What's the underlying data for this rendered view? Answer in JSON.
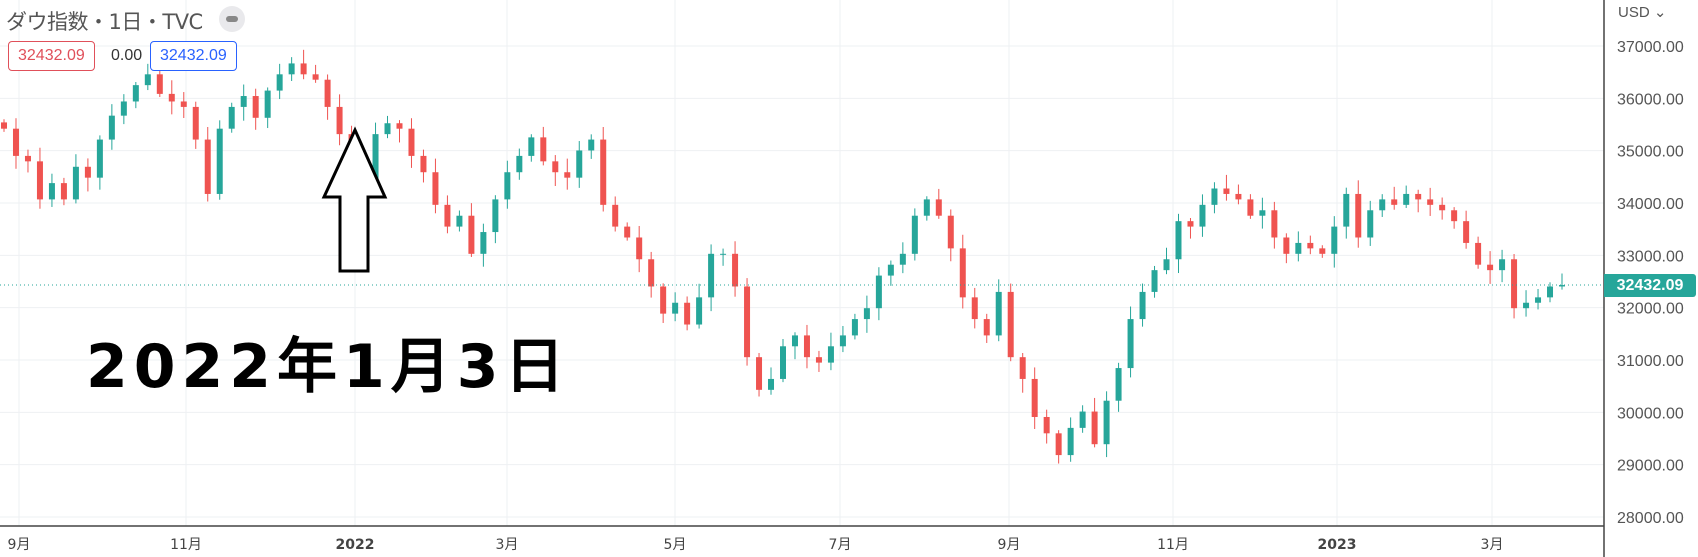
{
  "header": {
    "title": "ダウ指数・1日・TVC",
    "hide_icon": "minus-circle-icon",
    "open_value": "32432.09",
    "change_value": "0.00",
    "close_value": "32432.09"
  },
  "annotation": {
    "text": "2022年1月3日",
    "arrow_icon": "up-arrow-outline-icon"
  },
  "chart_data": {
    "type": "candlestick",
    "currency": "USD",
    "last_price": "32432.09",
    "ylim": [
      28000,
      37000
    ],
    "y_ticks": [
      "37000.00",
      "36000.00",
      "35000.00",
      "34000.00",
      "33000.00",
      "32000.00",
      "31000.00",
      "30000.00",
      "29000.00",
      "28000.00"
    ],
    "x_ticks": [
      "9月",
      "11月",
      "2022",
      "3月",
      "5月",
      "7月",
      "9月",
      "11月",
      "2023",
      "3月"
    ],
    "grid": true,
    "colors": {
      "up": "#26a69a",
      "down": "#ef5350"
    },
    "closes": [
      35420,
      34900,
      34796,
      34069,
      34380,
      34069,
      34692,
      34484,
      35212,
      35669,
      35940,
      36252,
      36459,
      36085,
      35940,
      35836,
      35212,
      34173,
      35420,
      35836,
      36044,
      35628,
      36148,
      36459,
      36667,
      36459,
      36356,
      35836,
      35316,
      34588,
      34277,
      35316,
      35524,
      35420,
      34900,
      34588,
      33965,
      33549,
      33757,
      33029,
      33445,
      34069,
      34588,
      34900,
      35254,
      34796,
      34588,
      34484,
      35004,
      35212,
      33965,
      33549,
      33341,
      32925,
      32405,
      31886,
      32094,
      31678,
      32197,
      33029,
      33029,
      32405,
      31054,
      30430,
      30638,
      31262,
      31470,
      31054,
      30950,
      31262,
      31470,
      31782,
      31990,
      32613,
      32821,
      33029,
      33757,
      34069,
      33757,
      33133,
      32197,
      31782,
      31470,
      32301,
      31054,
      30638,
      29911,
      29599,
      29183,
      29703,
      30015,
      29391,
      30222,
      30846,
      31782,
      32301,
      32717,
      32925,
      33653,
      33549,
      33965,
      34277,
      34173,
      34069,
      33757,
      33861,
      33341,
      33029,
      33237,
      33133,
      33029,
      33549,
      34173,
      33341,
      33861,
      34069,
      33965,
      34173,
      34069,
      33965,
      33861,
      33653,
      33237,
      32821,
      32717,
      32925,
      31990,
      32094,
      32197,
      32405,
      32432
    ]
  }
}
